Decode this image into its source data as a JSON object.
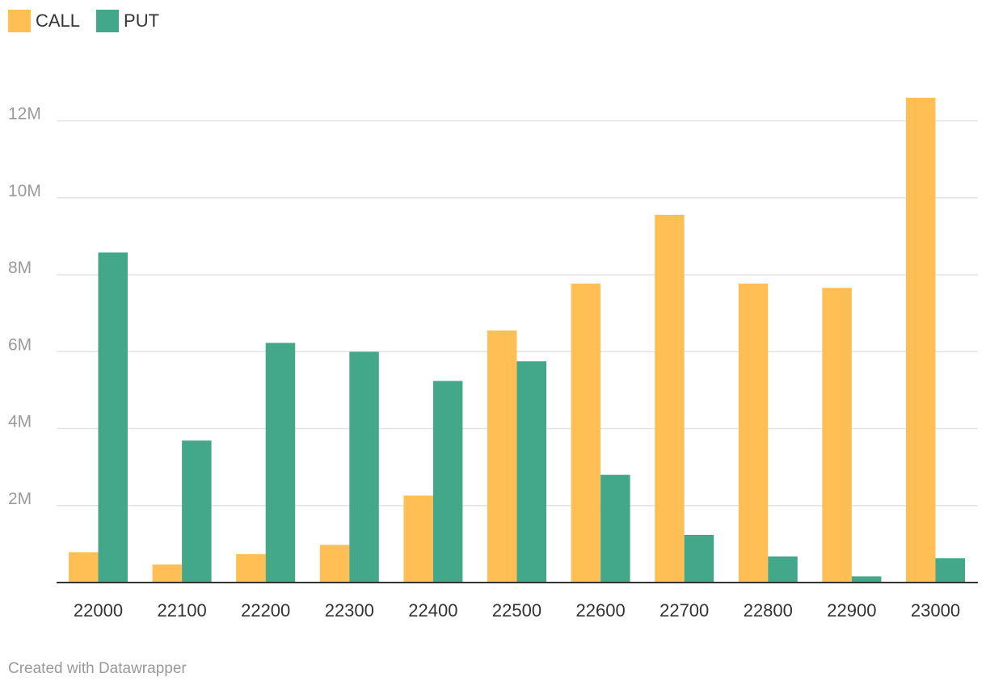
{
  "legend": [
    {
      "label": "CALL",
      "color": "#ffbf55"
    },
    {
      "label": "PUT",
      "color": "#42a889"
    }
  ],
  "credit": "Created with Datawrapper",
  "chart_data": {
    "type": "bar",
    "title": "",
    "xlabel": "",
    "ylabel": "",
    "categories": [
      "22000",
      "22100",
      "22200",
      "22300",
      "22400",
      "22500",
      "22600",
      "22700",
      "22800",
      "22900",
      "23000"
    ],
    "series": [
      {
        "name": "CALL",
        "color": "#ffbf55",
        "values": [
          790000,
          470000,
          740000,
          980000,
          2260000,
          6550000,
          7770000,
          9560000,
          7770000,
          7660000,
          12600000
        ]
      },
      {
        "name": "PUT",
        "color": "#42a889",
        "values": [
          8580000,
          3690000,
          6230000,
          6000000,
          5240000,
          5750000,
          2800000,
          1240000,
          680000,
          160000,
          630000
        ]
      }
    ],
    "ylim": [
      0,
      13000000
    ],
    "yticks": [
      {
        "value": 2000000,
        "label": "2M"
      },
      {
        "value": 4000000,
        "label": "4M"
      },
      {
        "value": 6000000,
        "label": "6M"
      },
      {
        "value": 8000000,
        "label": "8M"
      },
      {
        "value": 10000000,
        "label": "10M"
      },
      {
        "value": 12000000,
        "label": "12M"
      }
    ],
    "grid": true,
    "legend_position": "top-left"
  }
}
